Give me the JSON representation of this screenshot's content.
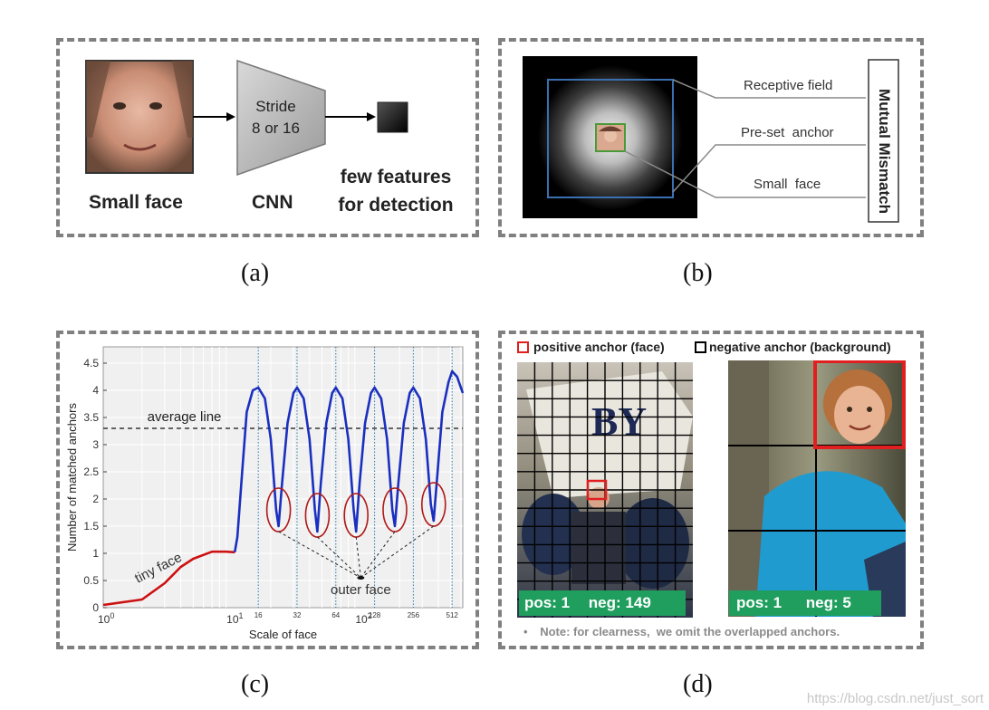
{
  "panel_a": {
    "stride_line1": "Stride",
    "stride_line2": "8 or 16",
    "small_face": "Small face",
    "cnn": "CNN",
    "few_features_line1": "few features",
    "few_features_line2": "for detection",
    "caption": "(a)"
  },
  "panel_b": {
    "receptive_field": "Receptive field",
    "preset_anchor": "Pre-set  anchor",
    "small_face": "Small  face",
    "mutual_mismatch": "Mutual Mismatch",
    "caption": "(b)"
  },
  "panel_c": {
    "caption": "(c)",
    "chart_data": {
      "type": "line",
      "xlabel": "Scale of face",
      "ylabel": "Number of matched anchors",
      "xscale": "log",
      "xlim": [
        1,
        620
      ],
      "ylim": [
        0,
        4.8
      ],
      "ytick_labels": [
        "0",
        "0.5",
        "1",
        "1.5",
        "2",
        "2.5",
        "3",
        "3.5",
        "4",
        "4.5"
      ],
      "xtick_major": [
        {
          "base": "10",
          "exp": "0"
        },
        {
          "base": "10",
          "exp": "1"
        },
        {
          "base": "10",
          "exp": "2"
        }
      ],
      "xtick_minor_labels": [
        "16",
        "32",
        "64",
        "128",
        "256",
        "512"
      ],
      "average_line": {
        "label": "average line",
        "y": 3.3
      },
      "annotations": {
        "tiny_face": "tiny face",
        "outer_face": "outer face"
      },
      "series": [
        {
          "color": "#cc1111",
          "points": [
            [
              1,
              0.05
            ],
            [
              2,
              0.15
            ],
            [
              3,
              0.45
            ],
            [
              4,
              0.75
            ],
            [
              5,
              0.9
            ],
            [
              7,
              1.03
            ],
            [
              9,
              1.03
            ],
            [
              10.5,
              1.02
            ]
          ]
        },
        {
          "color": "#1a2fbf",
          "points": [
            [
              10.5,
              1.02
            ],
            [
              11,
              1.3
            ],
            [
              12,
              2.5
            ],
            [
              13,
              3.6
            ],
            [
              14.5,
              4.0
            ],
            [
              16,
              4.05
            ],
            [
              18,
              3.85
            ],
            [
              20,
              3.1
            ],
            [
              22,
              1.8
            ],
            [
              23,
              1.5
            ],
            [
              24.5,
              2.3
            ],
            [
              27,
              3.4
            ],
            [
              30,
              3.95
            ],
            [
              32,
              4.05
            ],
            [
              36,
              3.85
            ],
            [
              40,
              3.1
            ],
            [
              44,
              1.8
            ],
            [
              46,
              1.4
            ],
            [
              49,
              2.3
            ],
            [
              54,
              3.4
            ],
            [
              60,
              3.95
            ],
            [
              64,
              4.05
            ],
            [
              72,
              3.85
            ],
            [
              80,
              3.1
            ],
            [
              88,
              1.8
            ],
            [
              92,
              1.4
            ],
            [
              98,
              2.3
            ],
            [
              108,
              3.4
            ],
            [
              120,
              3.95
            ],
            [
              128,
              4.05
            ],
            [
              144,
              3.85
            ],
            [
              160,
              3.1
            ],
            [
              176,
              1.8
            ],
            [
              184,
              1.5
            ],
            [
              196,
              2.3
            ],
            [
              216,
              3.4
            ],
            [
              240,
              3.95
            ],
            [
              256,
              4.05
            ],
            [
              288,
              3.85
            ],
            [
              320,
              3.1
            ],
            [
              350,
              1.9
            ],
            [
              368,
              1.6
            ],
            [
              392,
              2.4
            ],
            [
              430,
              3.6
            ],
            [
              480,
              4.15
            ],
            [
              512,
              4.35
            ],
            [
              560,
              4.25
            ],
            [
              620,
              3.95
            ]
          ]
        }
      ]
    }
  },
  "panel_d": {
    "legend_positive": "positive anchor (face)",
    "legend_negative": "negative anchor (background)",
    "left_pos": "pos: 1",
    "left_neg": "neg: 149",
    "right_pos": "pos: 1",
    "right_neg": "neg: 5",
    "note": "Note: for clearness,  we omit the overlapped anchors.",
    "caption": "(d)"
  },
  "watermark": "https://blog.csdn.net/just_sort"
}
